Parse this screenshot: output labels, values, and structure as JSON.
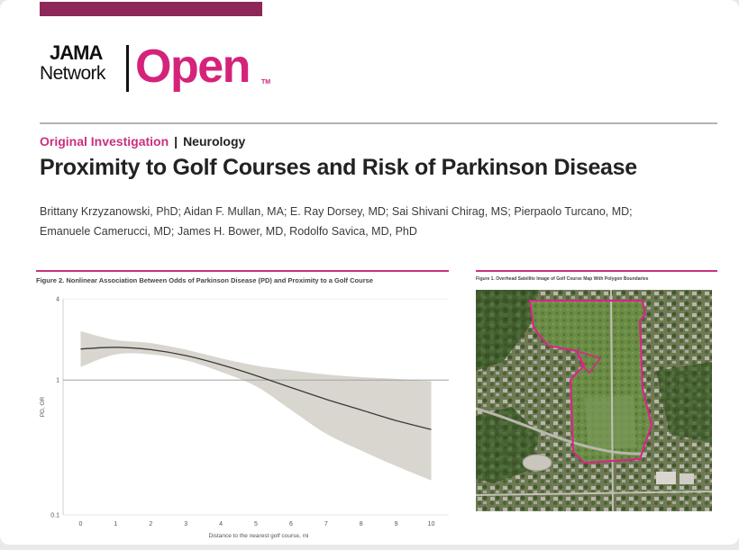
{
  "journal": {
    "logo_jama": "JAMA",
    "logo_network": "Network",
    "logo_open": "Open",
    "logo_tm": "TM"
  },
  "article": {
    "category_type": "Original Investigation",
    "category_separator": "|",
    "category_field": "Neurology",
    "title": "Proximity to Golf Courses and Risk of Parkinson Disease",
    "authors_line1": "Brittany Krzyzanowski, PhD; Aidan F. Mullan, MA; E. Ray Dorsey, MD; Sai Shivani Chirag, MS; Pierpaolo Turcano, MD;",
    "authors_line2": "Emanuele Camerucci, MD; James H. Bower, MD, Rodolfo Savica, MD, PhD"
  },
  "figure2": {
    "caption": "Figure 2. Nonlinear Association Between Odds of Parkinson Disease (PD) and Proximity to a Golf Course"
  },
  "figure1": {
    "caption": "Figure 1. Overhead Satellite Image of Golf Course Map With Polygon Boundaries"
  },
  "colors": {
    "brand_magenta": "#d4237a",
    "header_bar": "#8e2859",
    "confidence_band": "#d9d6cf",
    "polygon_outline": "#e0208c"
  },
  "chart_data": {
    "type": "line",
    "xlabel": "Distance to the nearest golf course, mi",
    "ylabel": "PD, OR",
    "x_ticks": [
      0,
      1,
      2,
      3,
      4,
      5,
      6,
      7,
      8,
      9,
      10
    ],
    "y_ticks": [
      0.1,
      1,
      4
    ],
    "y_scale": "log",
    "ylim": [
      0.1,
      4
    ],
    "xlim": [
      -0.5,
      10.5
    ],
    "reference_line_y": 1,
    "series": [
      {
        "x": [
          0,
          1,
          2,
          3,
          4,
          5,
          6,
          7,
          8,
          9,
          10
        ],
        "y": [
          1.7,
          1.75,
          1.68,
          1.52,
          1.3,
          1.08,
          0.88,
          0.72,
          0.6,
          0.5,
          0.43
        ],
        "ci_lower": [
          1.25,
          1.55,
          1.55,
          1.4,
          1.15,
          0.9,
          0.6,
          0.4,
          0.3,
          0.23,
          0.18
        ],
        "ci_upper": [
          2.3,
          1.98,
          1.88,
          1.68,
          1.45,
          1.28,
          1.18,
          1.1,
          1.05,
          1.02,
          0.98
        ]
      }
    ]
  }
}
